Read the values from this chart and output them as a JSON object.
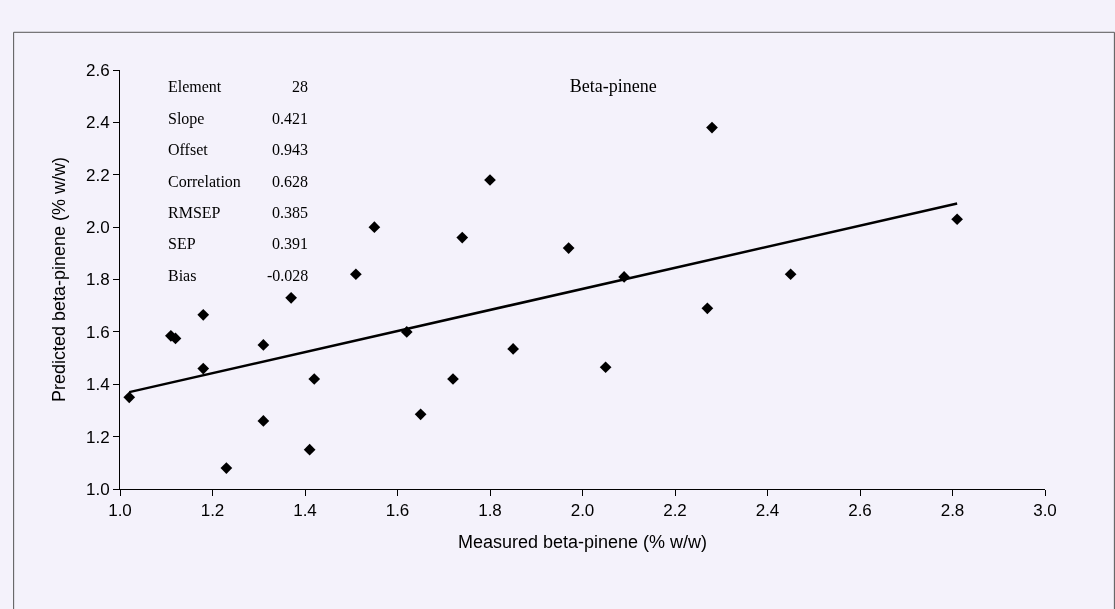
{
  "chart_data": {
    "type": "scatter",
    "title": "Beta-pinene",
    "xlabel": "Measured beta-pinene (% w/w)",
    "ylabel": "Predicted beta-pinene (% w/w)",
    "xlim": [
      1.0,
      3.0
    ],
    "xticks": [
      {
        "value": 1,
        "label": "1.0"
      },
      1.2,
      1.4,
      1.6,
      1.8,
      {
        "value": 2,
        "label": "2.0"
      },
      2.2,
      2.4,
      2.6,
      2.8,
      {
        "value": 3,
        "label": "3.0"
      }
    ],
    "ylim": [
      1.0,
      2.6
    ],
    "yticks": [
      {
        "value": 1,
        "label": "1.0"
      },
      1.2,
      1.4,
      1.6,
      1.8,
      {
        "value": 2,
        "label": "2.0"
      },
      2.2,
      2.4,
      2.6
    ],
    "grid": false,
    "marker": "diamond",
    "series": [
      {
        "color": "#000000",
        "x": [
          1.02,
          1.11,
          1.12,
          1.18,
          1.18,
          1.23,
          1.31,
          1.31,
          1.37,
          1.41,
          1.42,
          1.51,
          1.55,
          1.62,
          1.65,
          1.72,
          1.74,
          1.8,
          1.85,
          1.97,
          2.05,
          2.09,
          2.27,
          2.28,
          2.45,
          2.81
        ],
        "values": [
          1.35,
          1.585,
          1.575,
          1.665,
          1.46,
          1.08,
          1.55,
          1.26,
          1.73,
          1.15,
          1.42,
          1.82,
          2.0,
          1.6,
          1.285,
          1.42,
          1.96,
          2.18,
          1.535,
          1.92,
          1.465,
          1.81,
          1.69,
          2.38,
          1.82,
          2.03
        ]
      },
      {
        "type": "line",
        "color": "#000000",
        "marker": "none",
        "x": [
          1.02,
          2.81
        ],
        "values": [
          1.37,
          2.09
        ]
      }
    ],
    "annotations": [
      "Element",
      "28",
      "Slope",
      "0.421",
      "Offset",
      "0.943",
      "Correlation",
      "0.628",
      "RMSEP",
      "0.385",
      "SEP",
      "0.391",
      "Bias",
      "-0.028"
    ]
  }
}
